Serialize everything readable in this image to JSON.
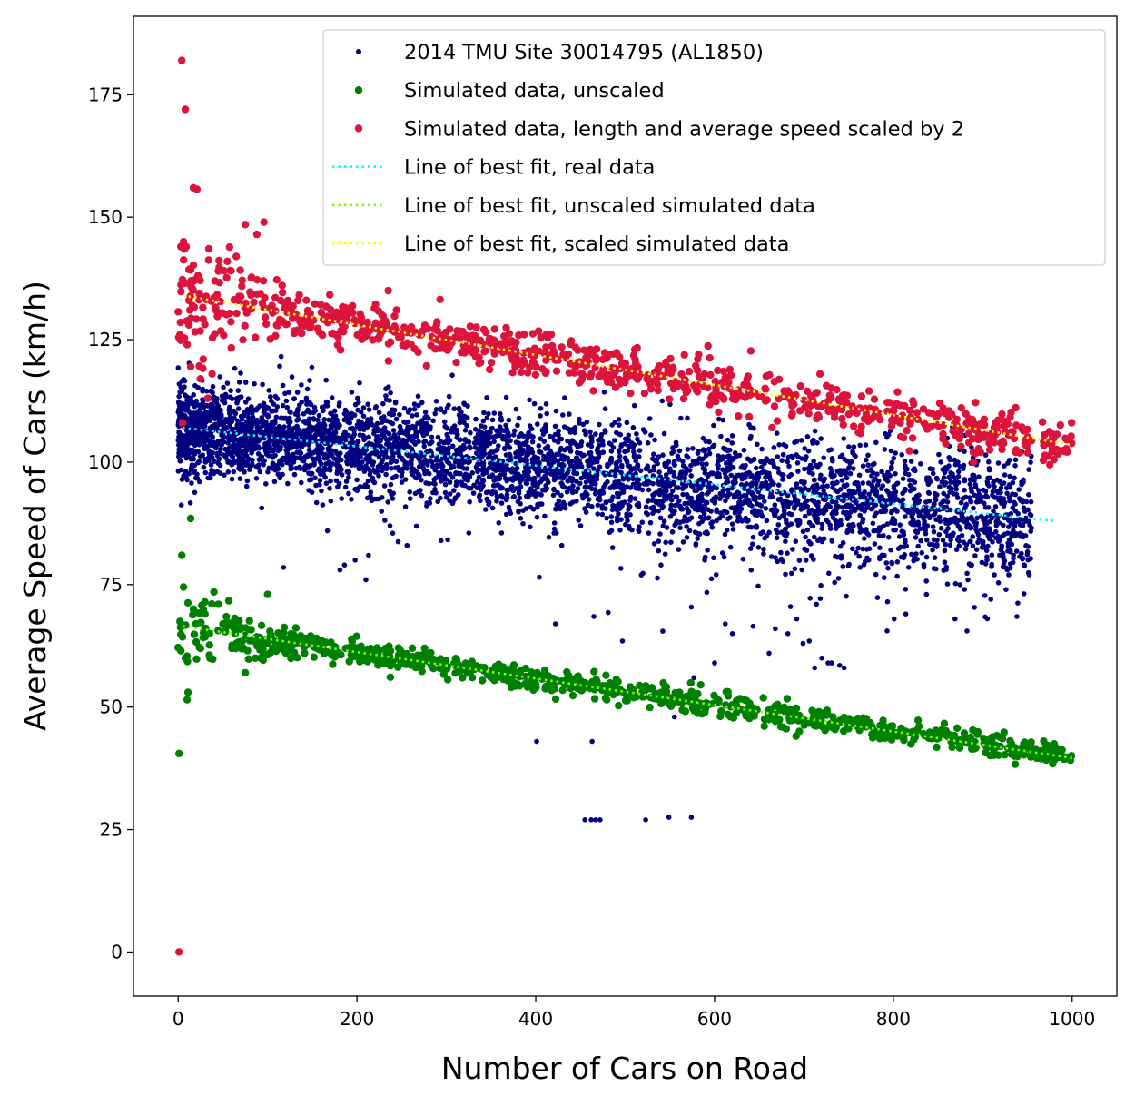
{
  "chart_data": {
    "type": "scatter",
    "title": "",
    "xlabel": "Number of Cars on Road",
    "ylabel": "Average Speed of Cars (km/h)",
    "xlim": [
      -50,
      1050
    ],
    "ylim": [
      -9,
      191
    ],
    "x_ticks": [
      0,
      200,
      400,
      600,
      800,
      1000
    ],
    "y_ticks": [
      0,
      25,
      50,
      75,
      100,
      125,
      150,
      175
    ],
    "grid": false,
    "legend_position": "top-right",
    "series": [
      {
        "name": "2014 TMU Site 30014795 (AL1850)",
        "kind": "scatter",
        "color": "#000080",
        "x_range": [
          0,
          955
        ],
        "trend": {
          "intercept": 107,
          "slope": -0.0195
        },
        "spread": 4.5,
        "points_estimated": 4500,
        "outliers": [
          [
            455,
            27
          ],
          [
            462,
            27
          ],
          [
            467,
            27
          ],
          [
            472,
            27
          ],
          [
            523,
            27
          ],
          [
            549,
            27.5
          ],
          [
            574,
            27.5
          ],
          [
            401,
            43
          ],
          [
            463,
            43
          ],
          [
            572,
            55
          ],
          [
            548,
            50.5
          ],
          [
            555,
            48
          ],
          [
            600,
            59
          ],
          [
            577,
            56
          ],
          [
            620,
            65
          ],
          [
            661,
            61
          ],
          [
            682,
            65
          ],
          [
            699,
            63
          ],
          [
            706,
            63.5
          ],
          [
            712,
            58
          ],
          [
            731,
            59
          ],
          [
            740,
            58.5
          ],
          [
            745,
            58
          ],
          [
            720,
            60
          ],
          [
            727,
            59
          ],
          [
            497,
            63.5
          ],
          [
            542,
            65.5
          ],
          [
            422,
            67
          ],
          [
            465,
            68.5
          ],
          [
            481,
            69.3
          ],
          [
            574,
            70.4
          ],
          [
            612,
            67
          ],
          [
            643,
            66.5
          ],
          [
            668,
            66
          ],
          [
            685,
            70.5
          ],
          [
            692,
            68
          ],
          [
            714,
            71
          ],
          [
            801,
            68
          ],
          [
            814,
            69
          ],
          [
            837,
            73
          ],
          [
            869,
            68
          ],
          [
            909,
            72
          ],
          [
            926,
            74
          ],
          [
            540,
            79
          ],
          [
            589,
            80
          ],
          [
            404,
            76.5
          ],
          [
            118,
            78.5
          ],
          [
            181,
            78
          ],
          [
            167,
            86
          ],
          [
            240,
            85.5
          ],
          [
            294,
            84
          ],
          [
            213,
            81
          ],
          [
            256,
            83
          ],
          [
            186,
            79
          ],
          [
            198,
            80
          ],
          [
            210,
            76
          ],
          [
            952,
            77
          ],
          [
            929,
            77
          ],
          [
            913,
            77
          ]
        ]
      },
      {
        "name": "Simulated data, unscaled",
        "kind": "scatter",
        "color": "#008000",
        "x_range": [
          0,
          1000
        ],
        "trend": {
          "intercept": 66.5,
          "slope": -0.0267
        },
        "spread": 1.2,
        "points_estimated": 900,
        "outliers": [
          [
            1,
            40.5
          ],
          [
            2,
            67.5
          ],
          [
            3,
            61.5
          ],
          [
            4,
            81
          ],
          [
            6,
            74.5
          ],
          [
            8,
            60
          ],
          [
            10,
            51.5
          ],
          [
            11,
            53
          ],
          [
            14,
            88.5
          ],
          [
            17,
            70
          ],
          [
            20,
            67
          ],
          [
            25,
            62
          ],
          [
            30,
            69
          ],
          [
            35,
            65
          ],
          [
            40,
            73.5
          ],
          [
            45,
            71
          ],
          [
            60,
            62
          ],
          [
            75,
            57
          ],
          [
            100,
            73
          ],
          [
            92,
            60
          ]
        ]
      },
      {
        "name": "Simulated data, length and average speed scaled by 2",
        "kind": "scatter",
        "color": "#dc143c",
        "x_range": [
          0,
          1000
        ],
        "trend": {
          "intercept": 134,
          "slope": -0.0306
        },
        "spread": 2.2,
        "points_estimated": 900,
        "outliers": [
          [
            1,
            0
          ],
          [
            2,
            126
          ],
          [
            3,
            144
          ],
          [
            4,
            182
          ],
          [
            5,
            108
          ],
          [
            6,
            145
          ],
          [
            7,
            143.5
          ],
          [
            8,
            172
          ],
          [
            10,
            124
          ],
          [
            12,
            128
          ],
          [
            14,
            119.5
          ],
          [
            17,
            156
          ],
          [
            21,
            155.7
          ],
          [
            25,
            117
          ],
          [
            28,
            121
          ],
          [
            33,
            113
          ],
          [
            38,
            118
          ],
          [
            75,
            148.5
          ],
          [
            88,
            146.5
          ],
          [
            96,
            149
          ],
          [
            235,
            135
          ],
          [
            293,
            133.2
          ],
          [
            718,
            118
          ],
          [
            45,
            139
          ],
          [
            55,
            141
          ],
          [
            65,
            142
          ]
        ]
      },
      {
        "name": "Line of best fit, real data",
        "kind": "dotted-line",
        "color": "#00ffff",
        "x": [
          5,
          980
        ],
        "y": [
          107,
          88
        ]
      },
      {
        "name": "Line of best fit, unscaled simulated data",
        "kind": "dotted-line",
        "color": "#7cfc00",
        "x": [
          5,
          1000
        ],
        "y": [
          66.5,
          39.6
        ]
      },
      {
        "name": "Line of best fit, scaled simulated data",
        "kind": "dotted-line",
        "color": "#ffff00",
        "x": [
          5,
          1000
        ],
        "y": [
          134,
          103.5
        ]
      }
    ]
  }
}
